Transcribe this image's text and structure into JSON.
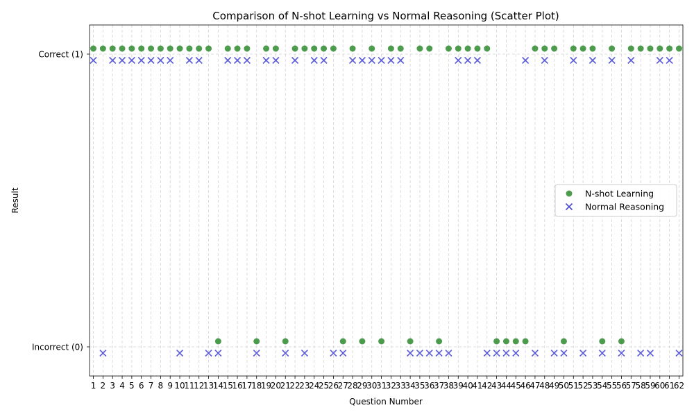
{
  "chart_data": {
    "type": "scatter",
    "title": "Comparison of N-shot Learning vs Normal Reasoning (Scatter Plot)",
    "xlabel": "Question Number",
    "ylabel": "Result",
    "x": [
      1,
      2,
      3,
      4,
      5,
      6,
      7,
      8,
      9,
      10,
      11,
      12,
      13,
      14,
      15,
      16,
      17,
      18,
      19,
      20,
      21,
      22,
      23,
      24,
      25,
      26,
      27,
      28,
      29,
      30,
      31,
      32,
      33,
      34,
      35,
      36,
      37,
      38,
      39,
      40,
      41,
      42,
      43,
      44,
      45,
      46,
      47,
      48,
      49,
      50,
      51,
      52,
      53,
      54,
      55,
      56,
      57,
      58,
      59,
      60,
      61,
      62
    ],
    "x_tick_labels": [
      "1",
      "2",
      "3",
      "4",
      "5",
      "6",
      "7",
      "8",
      "9",
      "10",
      "11",
      "12",
      "13",
      "14",
      "15",
      "16",
      "17",
      "18",
      "19",
      "20",
      "21",
      "22",
      "23",
      "24",
      "25",
      "26",
      "27",
      "28",
      "29",
      "30",
      "31",
      "32",
      "33",
      "34",
      "35",
      "36",
      "37",
      "38",
      "39",
      "40",
      "41",
      "42",
      "43",
      "44",
      "45",
      "46",
      "47",
      "48",
      "49",
      "50",
      "51",
      "52",
      "53",
      "54",
      "55",
      "56",
      "57",
      "58",
      "59",
      "60",
      "61",
      "62"
    ],
    "y_ticks": [
      0,
      1
    ],
    "y_tick_labels": [
      "Incorrect (0)",
      "Correct (1)"
    ],
    "grid": true,
    "legend_position": "center-right",
    "series": [
      {
        "name": "N-shot Learning",
        "marker": "circle",
        "color": "#2e8b2e",
        "values": [
          1,
          1,
          1,
          1,
          1,
          1,
          1,
          1,
          1,
          1,
          1,
          1,
          1,
          0,
          1,
          1,
          1,
          0,
          1,
          1,
          0,
          1,
          1,
          1,
          1,
          1,
          0,
          1,
          0,
          1,
          0,
          1,
          1,
          0,
          1,
          1,
          0,
          1,
          1,
          1,
          1,
          1,
          0,
          0,
          0,
          0,
          1,
          1,
          1,
          0,
          1,
          1,
          1,
          0,
          1,
          0,
          1,
          1,
          1,
          1,
          1,
          1
        ]
      },
      {
        "name": "Normal Reasoning",
        "marker": "x",
        "color": "#4a4ad6",
        "values": [
          1,
          0,
          1,
          1,
          1,
          1,
          1,
          1,
          1,
          0,
          1,
          1,
          0,
          0,
          1,
          1,
          1,
          0,
          1,
          1,
          0,
          1,
          0,
          1,
          1,
          0,
          0,
          1,
          1,
          1,
          1,
          1,
          1,
          0,
          0,
          0,
          0,
          0,
          1,
          1,
          1,
          0,
          0,
          0,
          0,
          1,
          0,
          1,
          0,
          0,
          1,
          0,
          1,
          0,
          1,
          0,
          1,
          0,
          0,
          1,
          1,
          0
        ]
      }
    ]
  }
}
